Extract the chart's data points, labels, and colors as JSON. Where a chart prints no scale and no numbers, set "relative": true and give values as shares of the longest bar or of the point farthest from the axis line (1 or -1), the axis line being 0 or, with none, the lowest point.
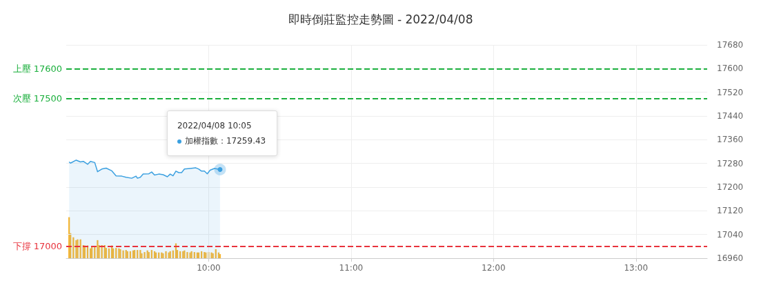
{
  "chart_data": [
    {
      "type": "area",
      "title": "即時倒莊監控走勢圖 - 2022/04/08",
      "xlim": [
        9,
        13.5
      ],
      "xticks": [
        {
          "value": 10,
          "label": "10:00"
        },
        {
          "value": 11,
          "label": "11:00"
        },
        {
          "value": 12,
          "label": "12:00"
        },
        {
          "value": 13,
          "label": "13:00"
        }
      ],
      "ylim": [
        16960,
        17680
      ],
      "yticks": [
        16960,
        17040,
        17120,
        17200,
        17280,
        17360,
        17440,
        17520,
        17600,
        17680
      ],
      "grid": true,
      "legend": "top left",
      "marker": "none",
      "line_style": "solid",
      "series": [
        {
          "name": "加權指數",
          "color": "#3ba0e0",
          "x": [
            9.02,
            9.03,
            9.07,
            9.1,
            9.12,
            9.15,
            9.17,
            9.2,
            9.22,
            9.25,
            9.28,
            9.32,
            9.35,
            9.39,
            9.42,
            9.46,
            9.49,
            9.5,
            9.52,
            9.54,
            9.58,
            9.6,
            9.62,
            9.65,
            9.68,
            9.71,
            9.73,
            9.75,
            9.77,
            9.79,
            9.81,
            9.83,
            9.87,
            9.89,
            9.91,
            9.93,
            9.95,
            9.97,
            9.99,
            10.01,
            10.04,
            10.08
          ],
          "values": [
            17285,
            17281,
            17291,
            17285,
            17287,
            17277,
            17287,
            17283,
            17252,
            17261,
            17264,
            17255,
            17238,
            17237,
            17233,
            17230,
            17237,
            17230,
            17233,
            17244,
            17245,
            17251,
            17241,
            17244,
            17242,
            17235,
            17244,
            17238,
            17254,
            17249,
            17249,
            17261,
            17263,
            17264,
            17265,
            17261,
            17254,
            17254,
            17245,
            17257,
            17263,
            17259.43
          ]
        }
      ],
      "ref_lines": [
        {
          "axis": "y",
          "value": 17600,
          "label": "上壓 17600",
          "color": "#1aaf3c",
          "line_style": "dashed"
        },
        {
          "axis": "y",
          "value": 17500,
          "label": "次壓 17500",
          "color": "#1aaf3c",
          "line_style": "dashed"
        },
        {
          "axis": "y",
          "value": 17000,
          "label": "下撐 17000",
          "color": "#e8323c",
          "line_style": "dashed"
        }
      ],
      "annotations": [
        "2022/04/08 10:05",
        "：17259.43"
      ]
    },
    {
      "type": "bar",
      "relative": true,
      "color": "#fbb731",
      "xlim": [
        9,
        13.5
      ],
      "x": [
        9.02,
        9.03,
        9.05,
        9.07,
        9.08,
        9.1,
        9.12,
        9.13,
        9.15,
        9.17,
        9.18,
        9.2,
        9.22,
        9.23,
        9.25,
        9.27,
        9.28,
        9.3,
        9.32,
        9.33,
        9.35,
        9.37,
        9.38,
        9.4,
        9.42,
        9.43,
        9.45,
        9.47,
        9.48,
        9.5,
        9.52,
        9.53,
        9.55,
        9.57,
        9.58,
        9.6,
        9.62,
        9.63,
        9.65,
        9.67,
        9.68,
        9.7,
        9.72,
        9.73,
        9.75,
        9.77,
        9.78,
        9.8,
        9.82,
        9.83,
        9.85,
        9.87,
        9.88,
        9.9,
        9.92,
        9.93,
        9.95,
        9.97,
        9.98,
        10,
        10.02,
        10.03,
        10.05,
        10.07,
        10.08
      ],
      "values": [
        1,
        0.61,
        0.51,
        0.44,
        0.46,
        0.46,
        0.32,
        0.31,
        0.31,
        0.24,
        0.29,
        0.29,
        0.44,
        0.32,
        0.32,
        0.32,
        0.25,
        0.24,
        0.31,
        0.24,
        0.25,
        0.24,
        0.22,
        0.19,
        0.2,
        0.17,
        0.17,
        0.19,
        0.2,
        0.2,
        0.2,
        0.12,
        0.15,
        0.19,
        0.15,
        0.2,
        0.17,
        0.14,
        0.14,
        0.14,
        0.12,
        0.17,
        0.14,
        0.17,
        0.19,
        0.36,
        0.2,
        0.17,
        0.17,
        0.19,
        0.15,
        0.14,
        0.17,
        0.15,
        0.14,
        0.14,
        0.17,
        0.15,
        0.14,
        0.15,
        0.14,
        0.12,
        0.22,
        0.14,
        0.1
      ]
    }
  ]
}
